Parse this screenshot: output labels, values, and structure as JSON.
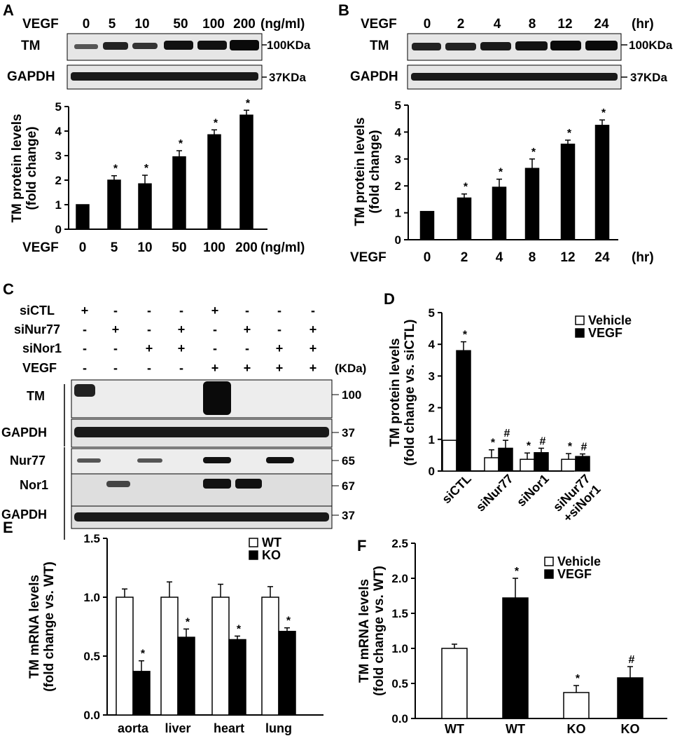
{
  "panels": [
    {
      "letter": "A"
    },
    {
      "letter": "B"
    },
    {
      "letter": "C"
    },
    {
      "letter": "D"
    },
    {
      "letter": "E"
    },
    {
      "letter": "F"
    }
  ],
  "panelA": {
    "header_label": "VEGF",
    "header_values": [
      "0",
      "5",
      "10",
      "50",
      "100",
      "200"
    ],
    "header_unit": "(ng/ml)",
    "blots": [
      {
        "label": "TM",
        "marker": "100KDa"
      },
      {
        "label": "GAPDH",
        "marker": "37KDa"
      }
    ]
  },
  "panelB": {
    "header_label": "VEGF",
    "header_values": [
      "0",
      "2",
      "4",
      "8",
      "12",
      "24"
    ],
    "header_unit": "(hr)",
    "blots": [
      {
        "label": "TM",
        "marker": "100KDa"
      },
      {
        "label": "GAPDH",
        "marker": "37KDa"
      }
    ]
  },
  "panelC": {
    "row_labels": [
      "siCTL",
      "siNur77",
      "siNor1",
      "VEGF"
    ],
    "signs": [
      [
        "+",
        "-",
        "-",
        "-",
        "+",
        "-",
        "-",
        "-"
      ],
      [
        "-",
        "+",
        "-",
        "+",
        "-",
        "+",
        "-",
        "+"
      ],
      [
        "-",
        "-",
        "+",
        "+",
        "-",
        "-",
        "+",
        "+"
      ],
      [
        "-",
        "-",
        "-",
        "-",
        "+",
        "+",
        "+",
        "+"
      ]
    ],
    "kda_label": "(KDa)",
    "blots": [
      {
        "label": "TM",
        "marker": "100"
      },
      {
        "label": "GAPDH",
        "marker": "37"
      },
      {
        "label": "Nur77",
        "marker": "65"
      },
      {
        "label": "Nor1",
        "marker": "67"
      },
      {
        "label": "GAPDH",
        "marker": "37"
      }
    ]
  },
  "chart_data": [
    {
      "id": "A",
      "type": "bar",
      "ylabel": "TM protein levels\n(fold change)",
      "xprefix": "VEGF",
      "xunit": "(ng/ml)",
      "ylim": [
        0,
        5
      ],
      "yticks": [
        "0",
        "1",
        "2",
        "3",
        "4",
        "5"
      ],
      "categories": [
        "0",
        "5",
        "10",
        "50",
        "100",
        "200"
      ],
      "series": [
        {
          "values": [
            1.0,
            2.0,
            1.85,
            2.95,
            3.85,
            4.65
          ],
          "errors": [
            0,
            0.18,
            0.35,
            0.25,
            0.2,
            0.2
          ],
          "marks": [
            "",
            "*",
            "*",
            "*",
            "*",
            "*"
          ]
        }
      ]
    },
    {
      "id": "B",
      "type": "bar",
      "ylabel": "TM protein levels\n(fold change)",
      "xprefix": "VEGF",
      "xunit": "(hr)",
      "ylim": [
        0,
        5
      ],
      "yticks": [
        "0",
        "1",
        "2",
        "3",
        "4",
        "5"
      ],
      "categories": [
        "0",
        "2",
        "4",
        "8",
        "12",
        "24"
      ],
      "series": [
        {
          "values": [
            1.05,
            1.55,
            1.95,
            2.65,
            3.55,
            4.25
          ],
          "errors": [
            0,
            0.15,
            0.3,
            0.35,
            0.15,
            0.2
          ],
          "marks": [
            "",
            "*",
            "*",
            "*",
            "*",
            "*"
          ]
        }
      ]
    },
    {
      "id": "D",
      "type": "bar",
      "ylabel": "TM protein levels\n(fold change vs. siCTL)",
      "ylim": [
        0,
        5
      ],
      "yticks": [
        "0",
        "1",
        "2",
        "3",
        "4",
        "5"
      ],
      "categories": [
        "siCTL",
        "siNur77",
        "siNor1",
        "siNur77\n+siNor1"
      ],
      "legend": [
        "Vehicle",
        "VEGF"
      ],
      "series": [
        {
          "name": "Vehicle",
          "fill": "#ffffff",
          "values": [
            0.97,
            0.42,
            0.37,
            0.37
          ],
          "errors": [
            0,
            0.25,
            0.2,
            0.18
          ],
          "marks": [
            "",
            "*",
            "*",
            "*"
          ]
        },
        {
          "name": "VEGF",
          "fill": "#000000",
          "values": [
            3.8,
            0.72,
            0.58,
            0.46
          ],
          "errors": [
            0.28,
            0.25,
            0.14,
            0.08
          ],
          "marks": [
            "*",
            "#",
            "#",
            "#"
          ]
        }
      ]
    },
    {
      "id": "E",
      "type": "bar",
      "ylabel": "TM mRNA levels\n(fold change vs. WT)",
      "ylim": [
        0,
        1.5
      ],
      "yticks": [
        "0.0",
        "0.5",
        "1.0",
        "1.5"
      ],
      "categories": [
        "aorta",
        "liver",
        "heart",
        "lung"
      ],
      "legend": [
        "WT",
        "KO"
      ],
      "series": [
        {
          "name": "WT",
          "fill": "#ffffff",
          "values": [
            1.0,
            1.0,
            1.0,
            1.0
          ],
          "errors": [
            0.07,
            0.13,
            0.11,
            0.09
          ],
          "marks": [
            "",
            "",
            "",
            ""
          ]
        },
        {
          "name": "KO",
          "fill": "#000000",
          "values": [
            0.37,
            0.66,
            0.64,
            0.71
          ],
          "errors": [
            0.09,
            0.07,
            0.03,
            0.03
          ],
          "marks": [
            "*",
            "*",
            "*",
            "*"
          ]
        }
      ]
    },
    {
      "id": "F",
      "type": "bar",
      "ylabel": "TM mRNA levels\n(fold change vs. WT)",
      "ylim": [
        0,
        2.5
      ],
      "yticks": [
        "0.0",
        "0.5",
        "1.0",
        "1.5",
        "2.0",
        "2.5"
      ],
      "categories": [
        "WT",
        "WT",
        "KO",
        "KO"
      ],
      "legend": [
        "Vehicle",
        "VEGF"
      ],
      "series": [
        {
          "values": [
            1.0,
            1.72,
            0.37,
            0.58
          ],
          "errors": [
            0.06,
            0.28,
            0.1,
            0.16
          ],
          "fills": [
            "#ffffff",
            "#000000",
            "#ffffff",
            "#000000"
          ],
          "marks": [
            "",
            "*",
            "*",
            "#"
          ]
        }
      ]
    }
  ]
}
